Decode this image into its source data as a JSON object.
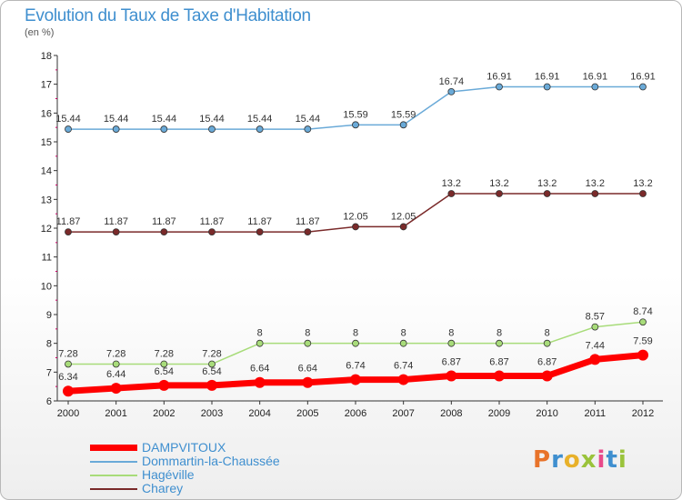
{
  "header": {
    "title": "Evolution du Taux de Taxe d'Habitation",
    "subtitle": "(en %)"
  },
  "logo": {
    "text": "Proxiti",
    "colors": [
      "#e8732a",
      "#3f8fcf",
      "#e8b12a",
      "#9ac33b",
      "#e84a8a",
      "#3f8fcf",
      "#9ac33b"
    ]
  },
  "chart_data": {
    "type": "line",
    "title": "Evolution du Taux de Taxe d'Habitation",
    "subtitle": "(en %)",
    "xlabel": "",
    "ylabel": "(en %)",
    "x": [
      2000,
      2001,
      2002,
      2003,
      2004,
      2005,
      2006,
      2007,
      2008,
      2009,
      2010,
      2011,
      2012
    ],
    "ylim": [
      6,
      18
    ],
    "yticks": [
      6,
      7,
      8,
      9,
      10,
      11,
      12,
      13,
      14,
      15,
      16,
      17,
      18
    ],
    "grid": false,
    "legend_position": "bottom-left",
    "series": [
      {
        "name": "DAMPVITOUX",
        "color": "#ff0000",
        "labels": [
          "6.34",
          "6.44",
          "6.54",
          "6.54",
          "6.64",
          "6.64",
          "6.74",
          "6.74",
          "6.87",
          "6.87",
          "6.87",
          "7.44",
          "7.59"
        ],
        "values": [
          6.34,
          6.44,
          6.54,
          6.54,
          6.64,
          6.64,
          6.74,
          6.74,
          6.87,
          6.87,
          6.87,
          7.44,
          7.59
        ]
      },
      {
        "name": "Dommartin-la-Chaussée",
        "color": "#6aaad8",
        "labels": [
          "15.44",
          "15.44",
          "15.44",
          "15.44",
          "15.44",
          "15.44",
          "15.59",
          "15.59",
          "16.74",
          "16.91",
          "16.91",
          "16.91",
          "16.91"
        ],
        "values": [
          15.44,
          15.44,
          15.44,
          15.44,
          15.44,
          15.44,
          15.59,
          15.59,
          16.74,
          16.91,
          16.91,
          16.91,
          16.91
        ]
      },
      {
        "name": "Hagéville",
        "color": "#a8dc7a",
        "labels": [
          "7.28",
          "7.28",
          "7.28",
          "7.28",
          "8",
          "8",
          "8",
          "8",
          "8",
          "8",
          "8",
          "8.57",
          "8.74"
        ],
        "values": [
          7.28,
          7.28,
          7.28,
          7.28,
          8,
          8,
          8,
          8,
          8,
          8,
          8,
          8.57,
          8.74
        ]
      },
      {
        "name": "Charey",
        "color": "#7a2a2a",
        "labels": [
          "11.87",
          "11.87",
          "11.87",
          "11.87",
          "11.87",
          "11.87",
          "12.05",
          "12.05",
          "13.2",
          "13.2",
          "13.2",
          "13.2",
          "13.2"
        ],
        "values": [
          11.87,
          11.87,
          11.87,
          11.87,
          11.87,
          11.87,
          12.05,
          12.05,
          13.2,
          13.2,
          13.2,
          13.2,
          13.2
        ]
      }
    ]
  }
}
